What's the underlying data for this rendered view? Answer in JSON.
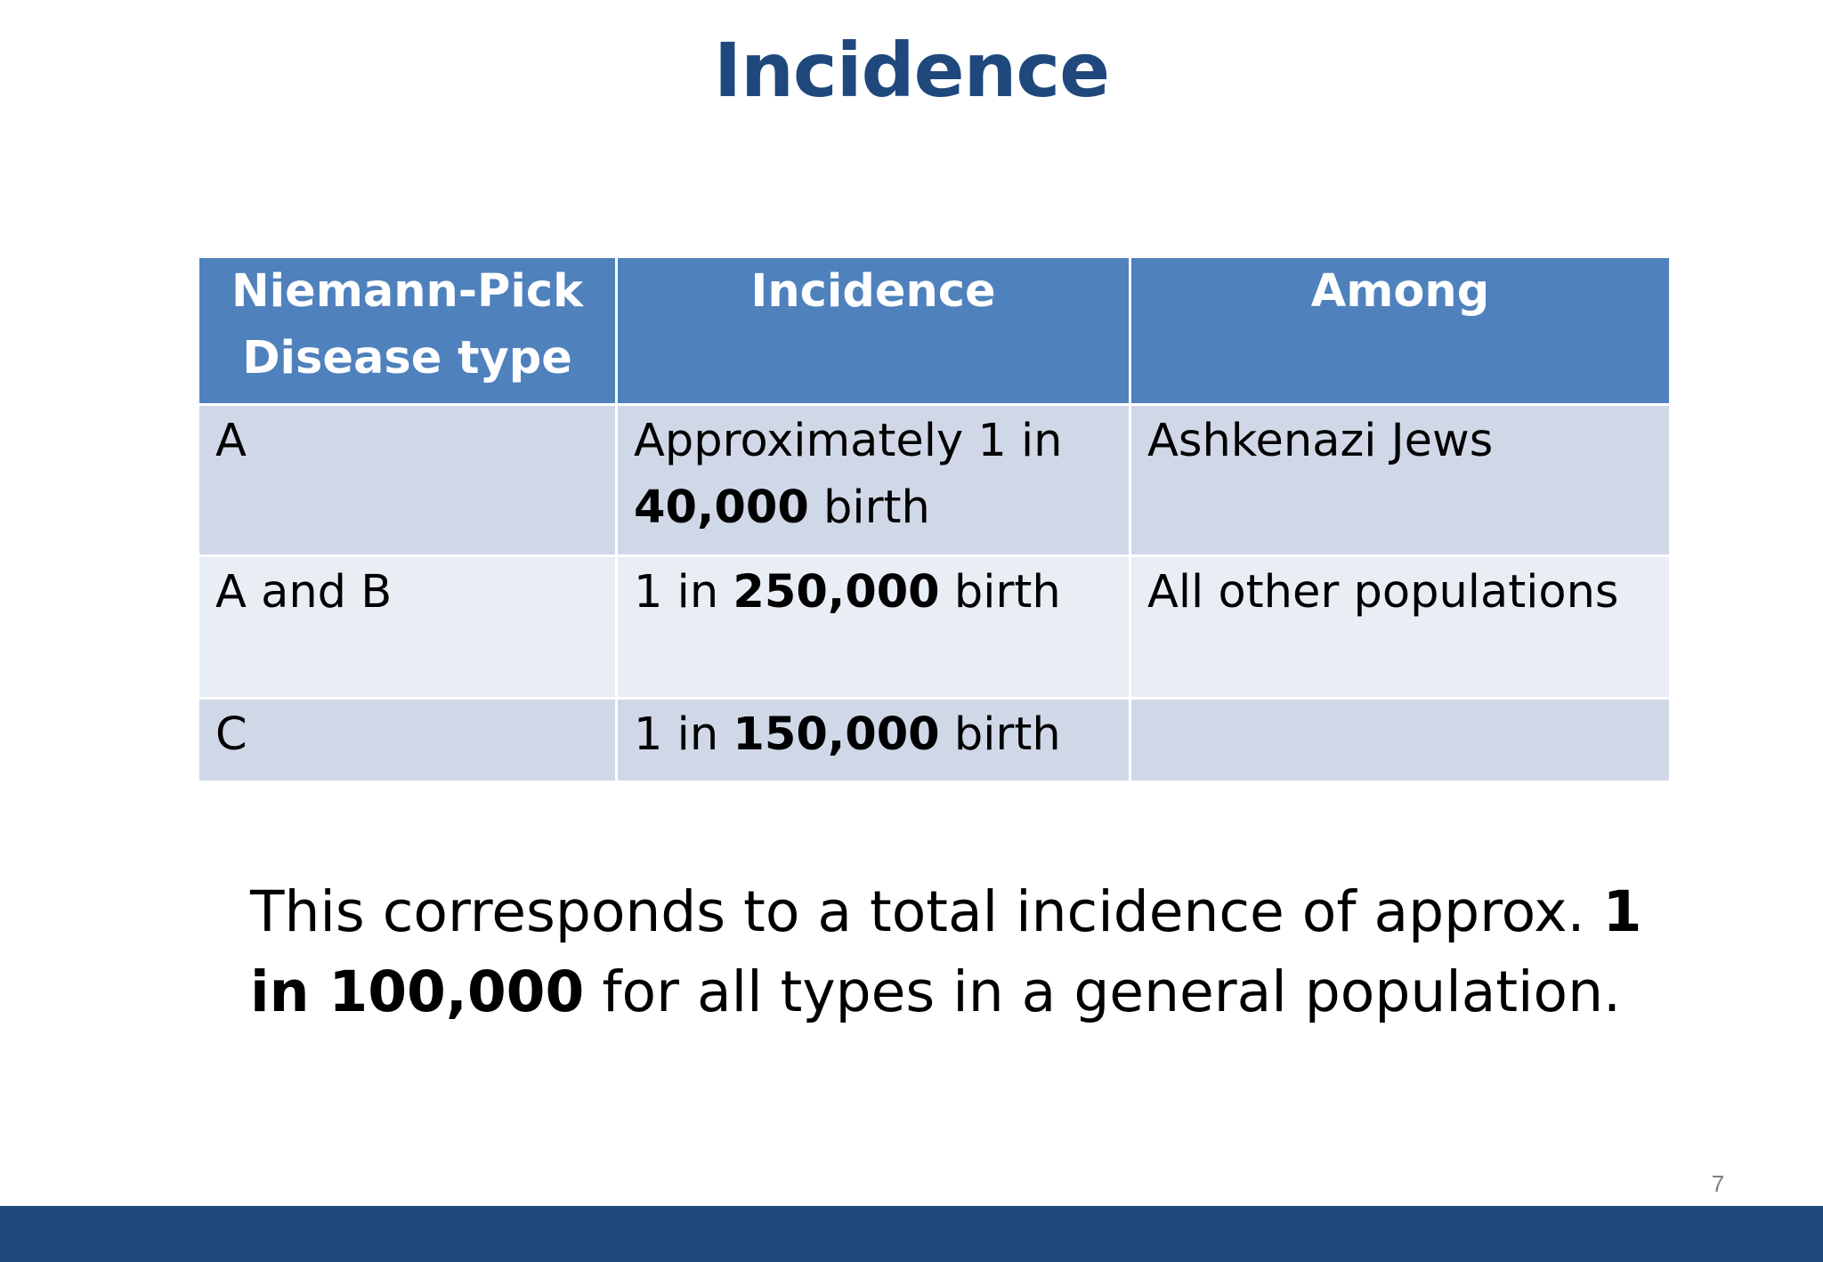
{
  "slide": {
    "title": "Incidence",
    "page_number": "7"
  },
  "table": {
    "headers": {
      "type_line1": "Niemann-Pick",
      "type_line2": "Disease type",
      "incidence": "Incidence",
      "among": "Among"
    },
    "rows": [
      {
        "type": "A",
        "incidence_prefix": "Approximately 1 in ",
        "incidence_value": "40,000",
        "incidence_suffix": " birth",
        "among": "Ashkenazi Jews"
      },
      {
        "type": "A and B",
        "incidence_prefix": "1 in ",
        "incidence_value": "250,000",
        "incidence_suffix": " birth",
        "among": "All other populations"
      },
      {
        "type": "C",
        "incidence_prefix": "1 in ",
        "incidence_value": "150,000",
        "incidence_suffix": " birth",
        "among": ""
      }
    ]
  },
  "summary": {
    "prefix": "This corresponds to a total incidence of approx. ",
    "highlight": "1 in 100,000",
    "suffix": " for all types in a general population."
  },
  "colors": {
    "title": "#1f487c",
    "header_background": "#4f81bd",
    "row_odd": "#d0d8e8",
    "row_even": "#e9edf4",
    "footer_bar": "#1f497d"
  }
}
